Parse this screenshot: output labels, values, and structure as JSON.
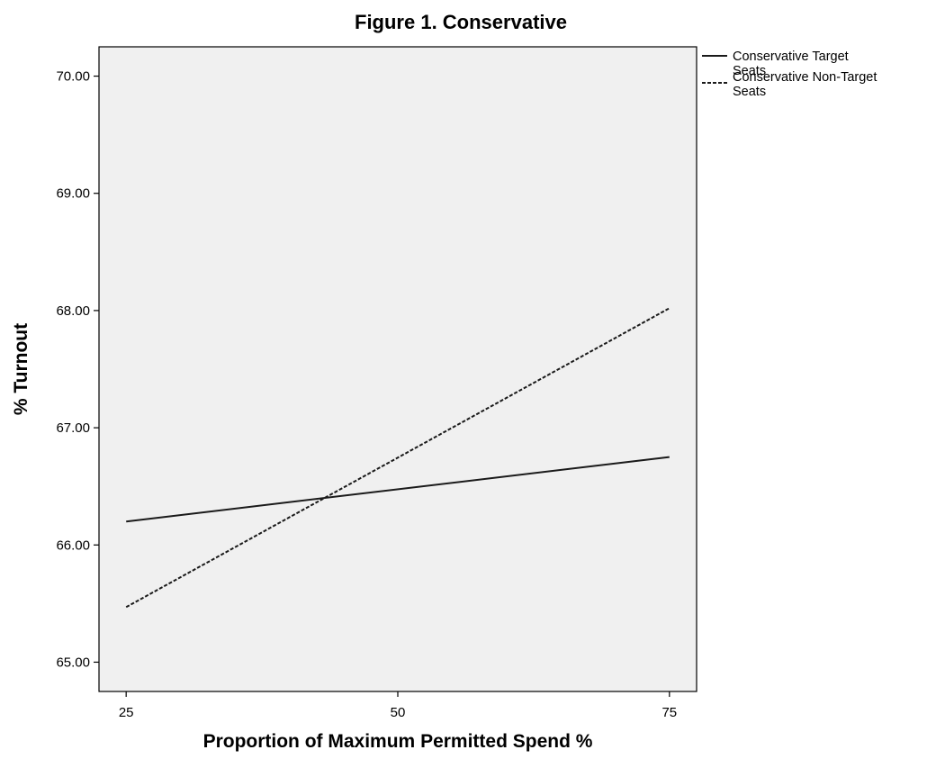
{
  "chart_data": {
    "type": "line",
    "title": "Figure 1. Conservative",
    "xlabel": "Proportion of Maximum Permitted Spend %",
    "ylabel": "% Turnout",
    "xlim": [
      22.5,
      77.5
    ],
    "ylim": [
      64.75,
      70.25
    ],
    "x_ticks": [
      25,
      50,
      75
    ],
    "x_tick_labels": [
      "25",
      "50",
      "75"
    ],
    "y_ticks": [
      65,
      66,
      67,
      68,
      69,
      70
    ],
    "y_tick_labels": [
      "65.00",
      "66.00",
      "67.00",
      "68.00",
      "69.00",
      "70.00"
    ],
    "grid": false,
    "legend_position": "top-right, outside plot",
    "plot_background": "#f0f0f0",
    "series": [
      {
        "name": "Conservative Target Seats",
        "style": "solid",
        "color": "#1a1a1a",
        "x": [
          25,
          75
        ],
        "y": [
          66.2,
          66.75
        ]
      },
      {
        "name": "Conservative Non-Target Seats",
        "style": "dashed",
        "color": "#1a1a1a",
        "x": [
          25,
          75
        ],
        "y": [
          65.47,
          68.02
        ]
      }
    ]
  }
}
